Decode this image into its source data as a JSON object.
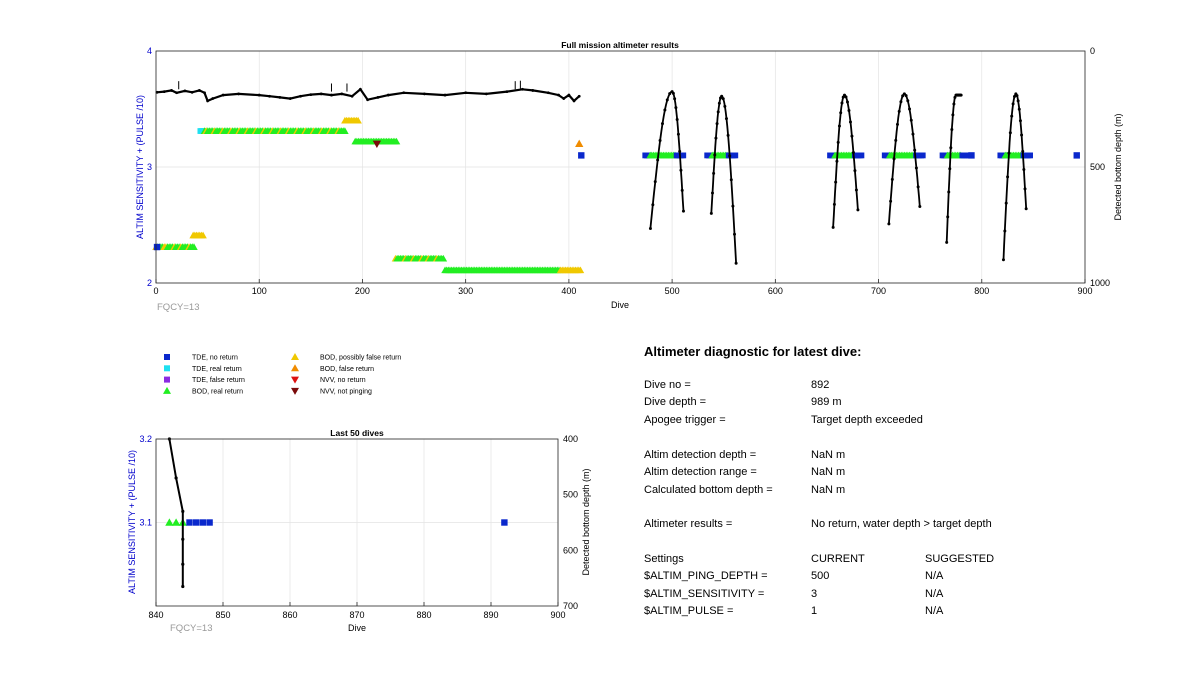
{
  "colors": {
    "axis_left": "#0000cc",
    "tde_no": "#0a28cc",
    "tde_real": "#1ee0f0",
    "tde_false": "#8a2be2",
    "bod_real": "#22ee22",
    "bod_possibly_false": "#f0c800",
    "bod_false": "#f08c00",
    "nvv_no": "#dd1111",
    "nvv_not": "#7a0a0a",
    "depth_line": "#000000",
    "grid": "#e3e3e3",
    "fqcy": "#999999"
  },
  "legend": [
    {
      "label": "TDE, no return",
      "marker": "square",
      "color": "tde_no"
    },
    {
      "label": "TDE, real return",
      "marker": "square",
      "color": "tde_real"
    },
    {
      "label": "TDE, false return",
      "marker": "square",
      "color": "tde_false"
    },
    {
      "label": "BOD, real return",
      "marker": "triangle-up",
      "color": "bod_real"
    },
    {
      "label": "BOD, possibly false return",
      "marker": "triangle-up",
      "color": "bod_possibly_false"
    },
    {
      "label": "BOD, false return",
      "marker": "triangle-up",
      "color": "bod_false"
    },
    {
      "label": "NVV, no return",
      "marker": "triangle-down",
      "color": "nvv_no"
    },
    {
      "label": "NVV, not pinging",
      "marker": "triangle-down",
      "color": "nvv_not"
    }
  ],
  "chart_data": [
    {
      "type": "scatter",
      "title": "Full mission altimeter results",
      "xlabel": "Dive",
      "ylabel": "ALTIM SENSITIVITY + (PULSE /10)",
      "y2label": "Detected bottom depth (m)",
      "xlim": [
        0,
        900
      ],
      "ylim": [
        2,
        4
      ],
      "y2lim": [
        1000,
        0
      ],
      "y2_reversed": true,
      "xticks": [
        "0",
        "100",
        "200",
        "300",
        "400",
        "500",
        "600",
        "700",
        "800",
        "900"
      ],
      "yticks": [
        "2",
        "3",
        "4"
      ],
      "y2ticks": [
        "0",
        "500",
        "1000"
      ],
      "grid": true,
      "annotation": "FQCY=13",
      "marker_runs": [
        {
          "from": 0,
          "to": 38,
          "y": 2.31,
          "kind": "bod_real_possibly_false"
        },
        {
          "from": 36,
          "to": 46,
          "y": 2.41,
          "kind": "bod_possibly_false"
        },
        {
          "from": 43,
          "to": 47,
          "y": 3.31,
          "kind": "tde_real"
        },
        {
          "from": 47,
          "to": 183,
          "y": 3.31,
          "kind": "bod_real_possibly_false"
        },
        {
          "from": 183,
          "to": 197,
          "y": 3.4,
          "kind": "bod_possibly_false"
        },
        {
          "from": 193,
          "to": 233,
          "y": 3.22,
          "kind": "bod_real"
        },
        {
          "from": 232,
          "to": 280,
          "y": 2.21,
          "kind": "bod_real_possibly_false"
        },
        {
          "from": 280,
          "to": 392,
          "y": 2.11,
          "kind": "bod_real"
        },
        {
          "from": 392,
          "to": 412,
          "y": 2.11,
          "kind": "bod_possibly_false"
        },
        {
          "from": 474,
          "to": 512,
          "y": 3.1,
          "kind": "tde_bod"
        },
        {
          "from": 534,
          "to": 562,
          "y": 3.1,
          "kind": "tde_bod"
        },
        {
          "from": 653,
          "to": 684,
          "y": 3.1,
          "kind": "tde_bod"
        },
        {
          "from": 706,
          "to": 744,
          "y": 3.1,
          "kind": "tde_bod"
        },
        {
          "from": 762,
          "to": 788,
          "y": 3.1,
          "kind": "tde_bod"
        },
        {
          "from": 818,
          "to": 848,
          "y": 3.1,
          "kind": "tde_bod"
        }
      ],
      "points": [
        {
          "x": 1,
          "y": 2.31,
          "kind": "tde_no"
        },
        {
          "x": 410,
          "y": 3.2,
          "kind": "bod_false"
        },
        {
          "x": 412,
          "y": 3.1,
          "kind": "tde_no"
        },
        {
          "x": 214,
          "y": 3.2,
          "kind": "nvv_not"
        },
        {
          "x": 790,
          "y": 3.1,
          "kind": "tde_no"
        },
        {
          "x": 892,
          "y": 3.1,
          "kind": "tde_no"
        }
      ],
      "depth_series": {
        "plateau": [
          [
            1,
            178
          ],
          [
            8,
            175
          ],
          [
            15,
            170
          ],
          [
            20,
            180
          ],
          [
            28,
            172
          ],
          [
            35,
            178
          ],
          [
            42,
            170
          ],
          [
            47,
            180
          ],
          [
            50,
            215
          ],
          [
            55,
            205
          ],
          [
            65,
            190
          ],
          [
            80,
            185
          ],
          [
            100,
            190
          ],
          [
            110,
            195
          ],
          [
            120,
            200
          ],
          [
            130,
            205
          ],
          [
            140,
            195
          ],
          [
            150,
            188
          ],
          [
            160,
            185
          ],
          [
            170,
            190
          ],
          [
            180,
            185
          ],
          [
            190,
            195
          ],
          [
            198,
            165
          ],
          [
            205,
            210
          ],
          [
            215,
            200
          ],
          [
            225,
            190
          ],
          [
            240,
            180
          ],
          [
            260,
            185
          ],
          [
            280,
            190
          ],
          [
            300,
            180
          ],
          [
            320,
            185
          ],
          [
            340,
            175
          ],
          [
            355,
            165
          ],
          [
            365,
            170
          ],
          [
            380,
            180
          ],
          [
            390,
            190
          ],
          [
            395,
            205
          ],
          [
            400,
            190
          ],
          [
            405,
            215
          ],
          [
            410,
            195
          ]
        ],
        "dives": [
          {
            "start": 479,
            "peak": 500,
            "end": 511,
            "start_depth": 765,
            "peak_depth": 175,
            "end_depth": 690
          },
          {
            "start": 538,
            "peak": 548,
            "end": 562,
            "start_depth": 700,
            "peak_depth": 195,
            "end_depth": 915
          },
          {
            "start": 656,
            "peak": 667,
            "end": 680,
            "start_depth": 760,
            "peak_depth": 190,
            "end_depth": 685
          },
          {
            "start": 710,
            "peak": 725,
            "end": 740,
            "start_depth": 745,
            "peak_depth": 185,
            "end_depth": 670
          },
          {
            "start": 766,
            "peak": 775,
            "end": 780,
            "start_depth": 825,
            "peak_depth": 190,
            "end_depth": 190
          },
          {
            "start": 821,
            "peak": 833,
            "end": 843,
            "start_depth": 900,
            "peak_depth": 185,
            "end_depth": 680
          }
        ]
      }
    },
    {
      "type": "scatter",
      "title": "Last 50 dives",
      "xlabel": "Dive",
      "ylabel": "ALTIM SENSITIVITY + (PULSE /10)",
      "y2label": "Detected bottom depth (m)",
      "xlim": [
        840,
        900
      ],
      "ylim": [
        3.0,
        3.2
      ],
      "y2lim": [
        700,
        400
      ],
      "y2_reversed": true,
      "xticks": [
        "840",
        "850",
        "860",
        "870",
        "880",
        "890",
        "900"
      ],
      "yticks": [
        "3.1",
        "3.2"
      ],
      "y2ticks": [
        "400",
        "500",
        "600",
        "700"
      ],
      "grid": true,
      "annotation": "FQCY=13",
      "points": [
        {
          "x": 842,
          "y": 3.1,
          "kind": "bod_real"
        },
        {
          "x": 843,
          "y": 3.1,
          "kind": "bod_real"
        },
        {
          "x": 844,
          "y": 3.1,
          "kind": "bod_real"
        },
        {
          "x": 845,
          "y": 3.1,
          "kind": "tde_no"
        },
        {
          "x": 846,
          "y": 3.1,
          "kind": "tde_no"
        },
        {
          "x": 847,
          "y": 3.1,
          "kind": "tde_no"
        },
        {
          "x": 848,
          "y": 3.1,
          "kind": "tde_no"
        },
        {
          "x": 892,
          "y": 3.1,
          "kind": "tde_no"
        }
      ],
      "depth_series": [
        [
          842,
          400
        ],
        [
          843,
          470
        ],
        [
          844,
          530
        ],
        [
          844,
          580
        ],
        [
          844,
          625
        ],
        [
          844,
          665
        ]
      ]
    }
  ],
  "diagnostic": {
    "title": "Altimeter diagnostic for latest dive:",
    "rows": [
      {
        "key": "Dive no =",
        "value": "892"
      },
      {
        "key": "Dive depth =",
        "value": "989 m"
      },
      {
        "key": "Apogee trigger =",
        "value": "Target depth exceeded"
      },
      {
        "key": "Altim detection depth =",
        "value": "NaN m"
      },
      {
        "key": "Altim detection range =",
        "value": "NaN m"
      },
      {
        "key": "Calculated bottom depth =",
        "value": "NaN m"
      },
      {
        "key": "Altimeter results =",
        "value": "No return, water depth > target depth"
      }
    ],
    "settings_header": {
      "key": "Settings",
      "current": "CURRENT",
      "suggested": "SUGGESTED"
    },
    "settings": [
      {
        "key": "$ALTIM_PING_DEPTH =",
        "current": "500",
        "suggested": "N/A"
      },
      {
        "key": "$ALTIM_SENSITIVITY =",
        "current": "3",
        "suggested": "N/A"
      },
      {
        "key": "$ALTIM_PULSE =",
        "current": "1",
        "suggested": "N/A"
      }
    ]
  }
}
